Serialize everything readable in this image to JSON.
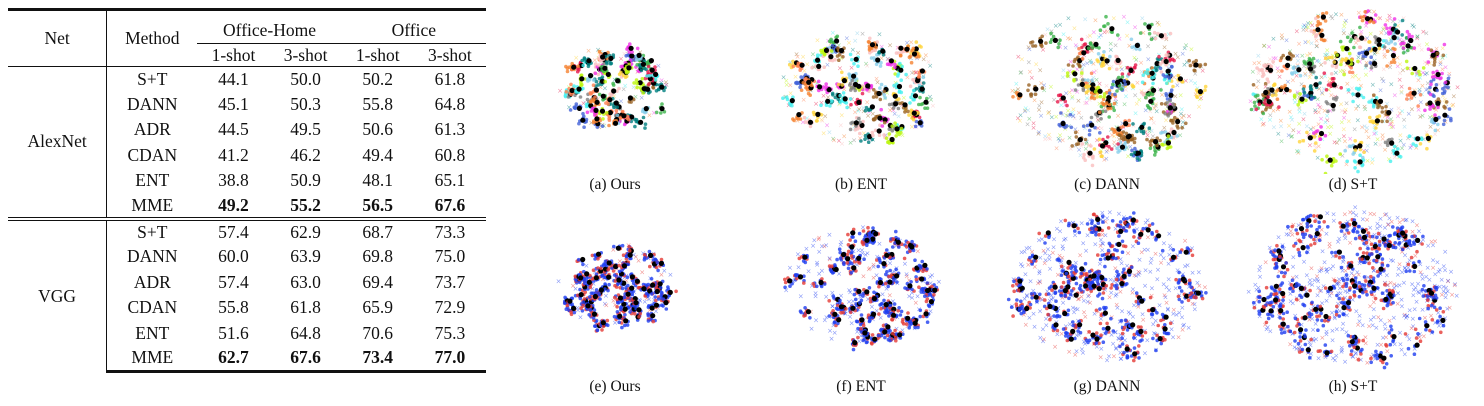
{
  "table": {
    "header": {
      "net": "Net",
      "method": "Method",
      "groups": [
        "Office-Home",
        "Office"
      ],
      "shots": [
        "1-shot",
        "3-shot",
        "1-shot",
        "3-shot"
      ]
    },
    "sections": [
      {
        "net": "AlexNet",
        "rows": [
          {
            "method": "S+T",
            "values": [
              "44.1",
              "50.0",
              "50.2",
              "61.8"
            ],
            "bold": false
          },
          {
            "method": "DANN",
            "values": [
              "45.1",
              "50.3",
              "55.8",
              "64.8"
            ],
            "bold": false
          },
          {
            "method": "ADR",
            "values": [
              "44.5",
              "49.5",
              "50.6",
              "61.3"
            ],
            "bold": false
          },
          {
            "method": "CDAN",
            "values": [
              "41.2",
              "46.2",
              "49.4",
              "60.8"
            ],
            "bold": false
          },
          {
            "method": "ENT",
            "values": [
              "38.8",
              "50.9",
              "48.1",
              "65.1"
            ],
            "bold": false
          },
          {
            "method": "MME",
            "values": [
              "49.2",
              "55.2",
              "56.5",
              "67.6"
            ],
            "bold": true
          }
        ]
      },
      {
        "net": "VGG",
        "rows": [
          {
            "method": "S+T",
            "values": [
              "57.4",
              "62.9",
              "68.7",
              "73.3"
            ],
            "bold": false
          },
          {
            "method": "DANN",
            "values": [
              "60.0",
              "63.9",
              "69.8",
              "75.0"
            ],
            "bold": false
          },
          {
            "method": "ADR",
            "values": [
              "57.4",
              "63.0",
              "69.4",
              "73.7"
            ],
            "bold": false
          },
          {
            "method": "CDAN",
            "values": [
              "55.8",
              "61.8",
              "65.9",
              "72.9"
            ],
            "bold": false
          },
          {
            "method": "ENT",
            "values": [
              "51.6",
              "64.8",
              "70.6",
              "75.3"
            ],
            "bold": false
          },
          {
            "method": "MME",
            "values": [
              "62.7",
              "67.6",
              "73.4",
              "77.0"
            ],
            "bold": true
          }
        ]
      }
    ]
  },
  "figures": {
    "top_row_captions": [
      "(a) Ours",
      "(b) ENT",
      "(c) DANN",
      "(d) S+T"
    ],
    "bottom_row_captions": [
      "(e) Ours",
      "(f) ENT",
      "(g) DANN",
      "(h) S+T"
    ],
    "colors": {
      "class_palette": [
        "#e6194b",
        "#3cb44b",
        "#ffd43b",
        "#4363d8",
        "#f58231",
        "#46f0f0",
        "#f032e6",
        "#bcf60c",
        "#fabebe",
        "#008080",
        "#9a6324",
        "#808080",
        "#ff7f50",
        "#87ceeb"
      ],
      "source": "#e53935",
      "target": "#1e3df0",
      "anchor": "#000000"
    }
  }
}
